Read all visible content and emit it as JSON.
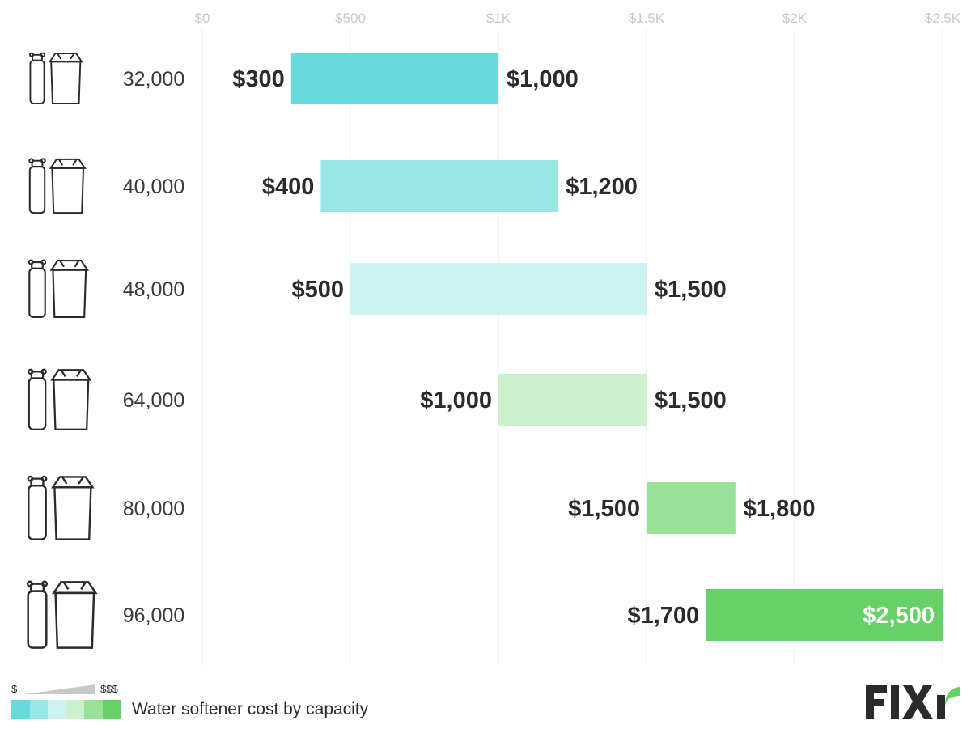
{
  "chart_data": {
    "type": "bar",
    "subtype": "floating-range",
    "title": "Water softener cost by capacity",
    "xlabel": "",
    "ylabel": "",
    "xlim": [
      0,
      2500
    ],
    "ticks": [
      {
        "value": 0,
        "label": "$0"
      },
      {
        "value": 500,
        "label": "$500"
      },
      {
        "value": 1000,
        "label": "$1K"
      },
      {
        "value": 1500,
        "label": "$1.5K"
      },
      {
        "value": 2000,
        "label": "$2K"
      },
      {
        "value": 2500,
        "label": "$2.5K"
      }
    ],
    "grid": true,
    "categories": [
      "32,000",
      "40,000",
      "48,000",
      "64,000",
      "80,000",
      "96,000"
    ],
    "low": [
      300,
      400,
      500,
      1000,
      1500,
      1700
    ],
    "high": [
      1000,
      1200,
      1500,
      1500,
      1800,
      2500
    ],
    "low_labels": [
      "$300",
      "$400",
      "$500",
      "$1,000",
      "$1,500",
      "$1,700"
    ],
    "high_labels": [
      "$1,000",
      "$1,200",
      "$1,500",
      "$1,500",
      "$1,800",
      "$2,500"
    ],
    "colors": [
      "#66dbdb",
      "#99e6e6",
      "#ccf2f2",
      "#ccf0cc",
      "#99e099",
      "#66d166"
    ]
  },
  "legend": {
    "low_label": "$",
    "high_label": "$$$",
    "title": "Water softener cost by capacity",
    "colors": [
      "#66dbdb",
      "#99e6e6",
      "#ccf2f2",
      "#ccf0cc",
      "#99e099",
      "#66d166"
    ]
  },
  "brand": {
    "logo_text": "FIXR",
    "logo_color": "#2b2b2b",
    "accent": "#66d166"
  }
}
